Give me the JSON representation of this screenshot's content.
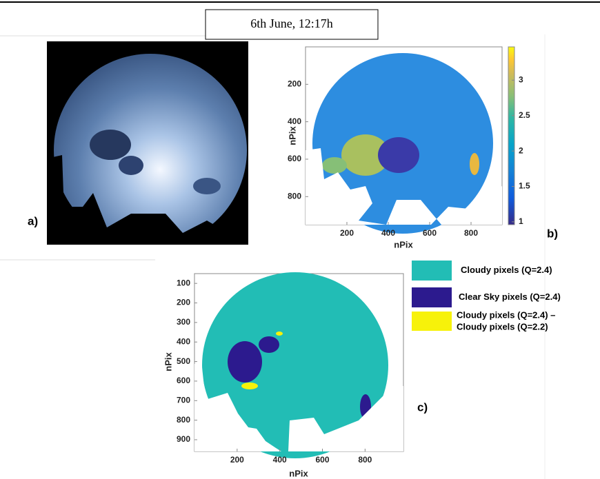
{
  "title": "6th June, 12:17h",
  "panel_a": {
    "label": "a)"
  },
  "panel_b": {
    "label": "b)",
    "xlabel": "nPix",
    "ylabel": "nPix",
    "xlim": [
      0,
      950
    ],
    "ylim": [
      0,
      950
    ],
    "xticks": [
      200,
      400,
      600,
      800
    ],
    "yticks": [
      200,
      400,
      600,
      800
    ],
    "colorbar_lim": [
      0.96,
      3.47
    ],
    "colorbar_ticks": [
      1,
      1.5,
      2,
      2.5,
      3
    ]
  },
  "panel_c": {
    "label": "c)",
    "xlabel": "nPix",
    "ylabel": "nPix",
    "xlim": [
      0,
      980
    ],
    "ylim": [
      50,
      960
    ],
    "xticks": [
      200,
      400,
      600,
      800
    ],
    "yticks": [
      100,
      200,
      300,
      400,
      500,
      600,
      700,
      800,
      900
    ],
    "legend": [
      {
        "label": "Cloudy pixels (Q=2.4)",
        "color": "#22bdb5"
      },
      {
        "label": "Clear Sky pixels (Q=2.4)",
        "color": "#2c1a8e"
      },
      {
        "label": "Cloudy pixels (Q=2.4) –",
        "label2": "Cloudy pixels (Q=2.2)",
        "color": "#f7f20a"
      }
    ]
  }
}
